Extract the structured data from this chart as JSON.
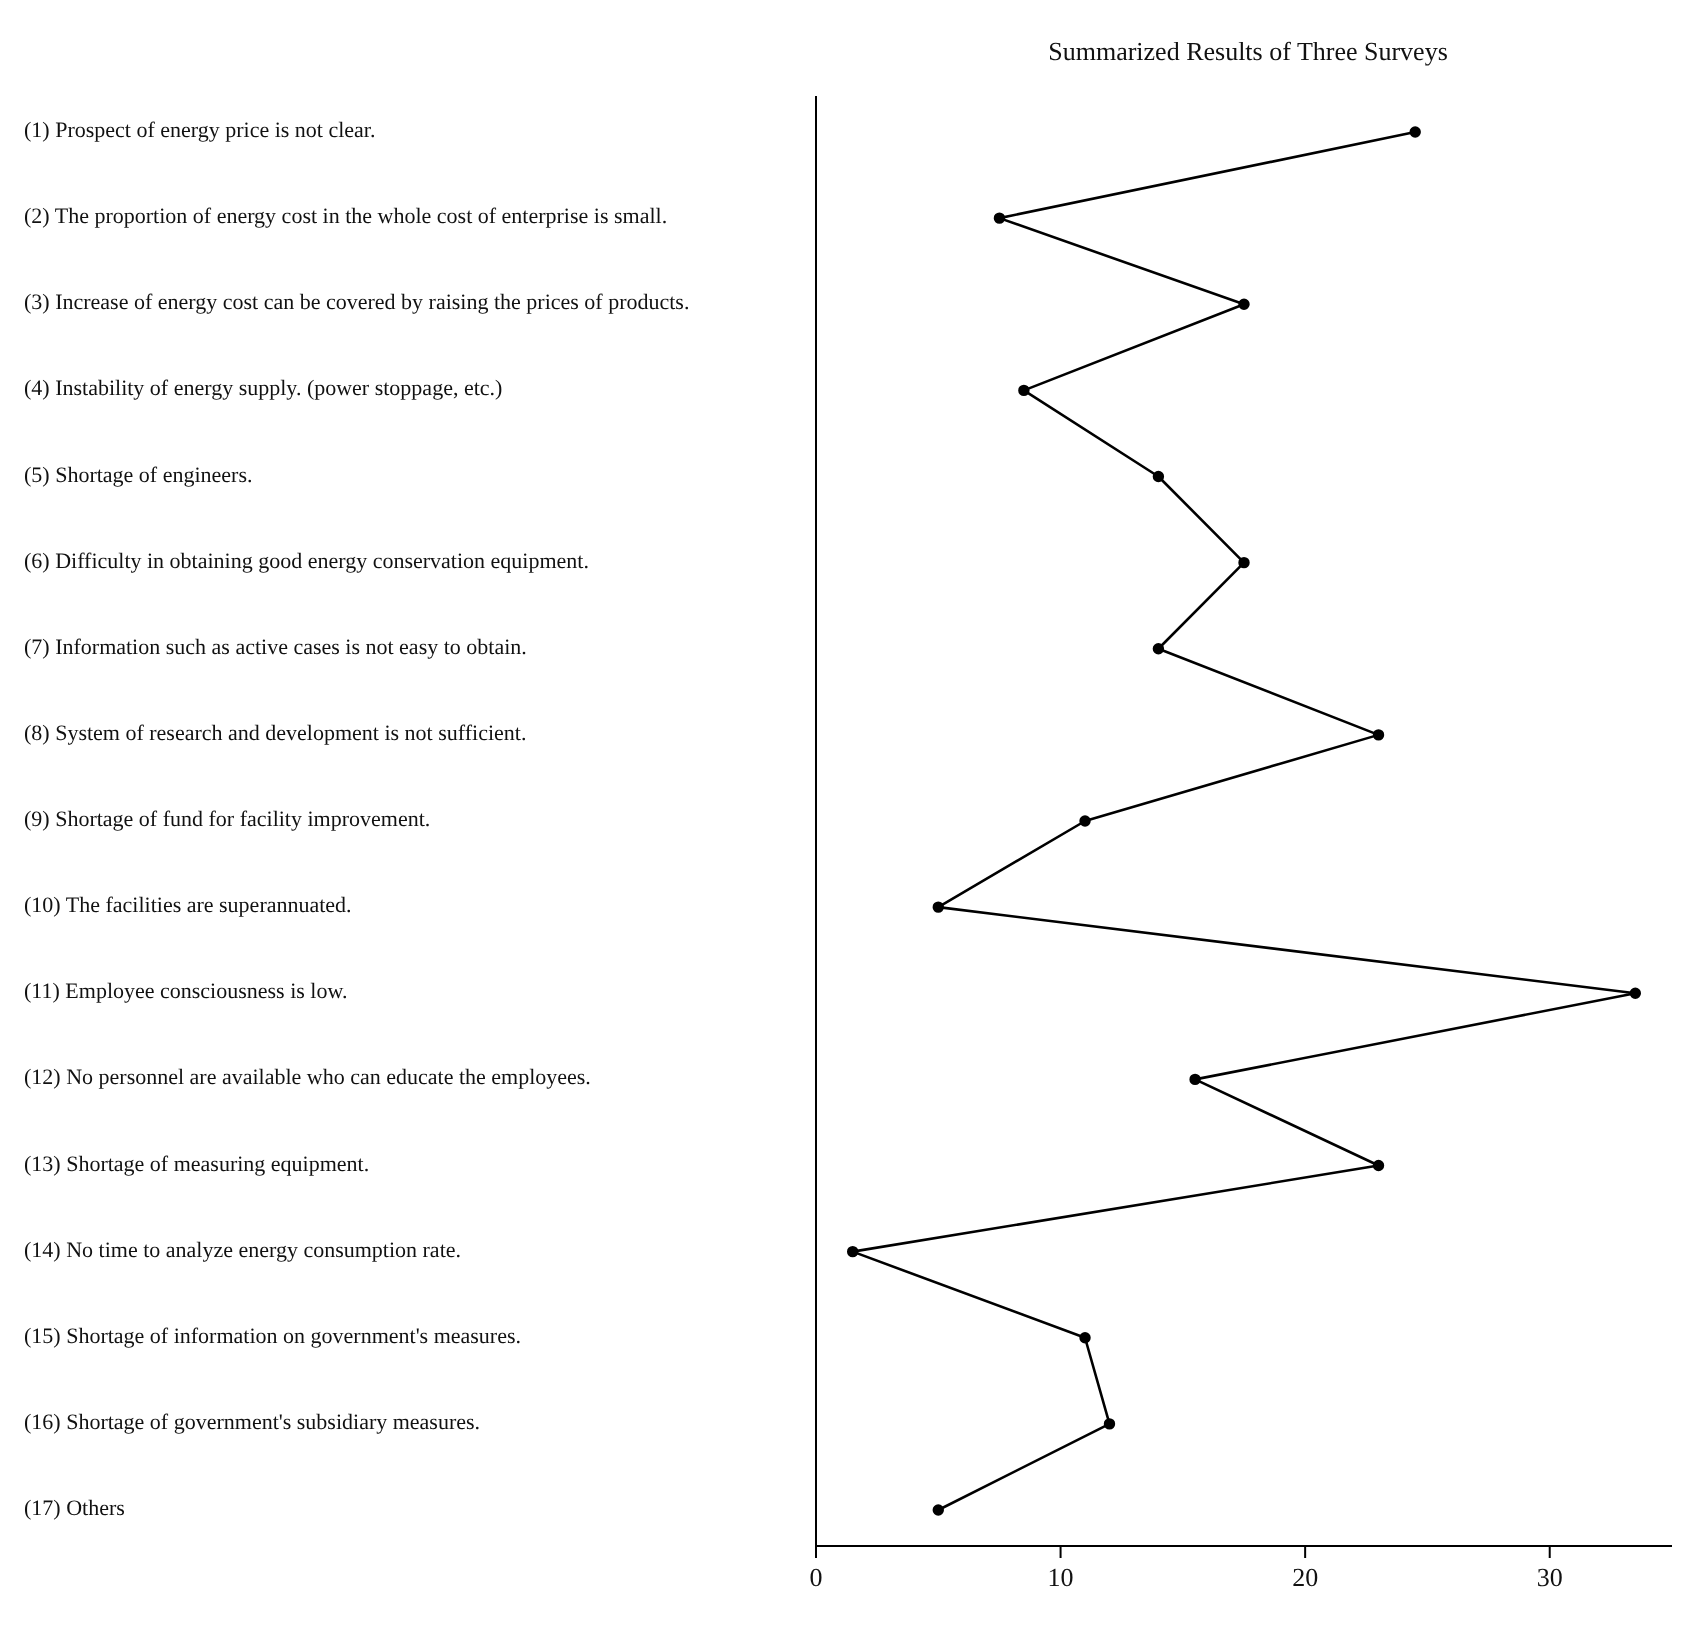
{
  "chart_data": {
    "type": "line",
    "title": "Summarized Results of Three Surveys",
    "orientation": "horizontal",
    "categories": [
      "(1) Prospect of energy price is not clear.",
      "(2) The proportion of energy cost in the whole cost of enterprise is small.",
      "(3) Increase of energy cost can be covered by raising the prices of products.",
      "(4) Instability of energy supply. (power stoppage, etc.)",
      "(5) Shortage of engineers.",
      "(6) Difficulty in obtaining good energy conservation equipment.",
      "(7) Information such as active cases is not easy to obtain.",
      "(8) System of research and development is not sufficient.",
      "(9) Shortage of fund for facility improvement.",
      "(10) The facilities are superannuated.",
      "(11) Employee consciousness is low.",
      "(12) No personnel are available who can educate the employees.",
      "(13) Shortage of measuring equipment.",
      "(14) No time to analyze energy consumption rate.",
      "(15) Shortage of information on government's measures.",
      "(16) Shortage of government's subsidiary measures.",
      "(17) Others"
    ],
    "series": [
      {
        "color": "#000000",
        "values": [
          24.5,
          7.5,
          17.5,
          8.5,
          14,
          17.5,
          14,
          23,
          11,
          5,
          33.5,
          15.5,
          23,
          1.5,
          11,
          12,
          5
        ]
      }
    ],
    "xlim": [
      0,
      35
    ],
    "xticks": [
      0,
      10,
      20,
      30
    ],
    "marker": "circle",
    "line_style": "solid",
    "grid": false,
    "legend": false
  }
}
